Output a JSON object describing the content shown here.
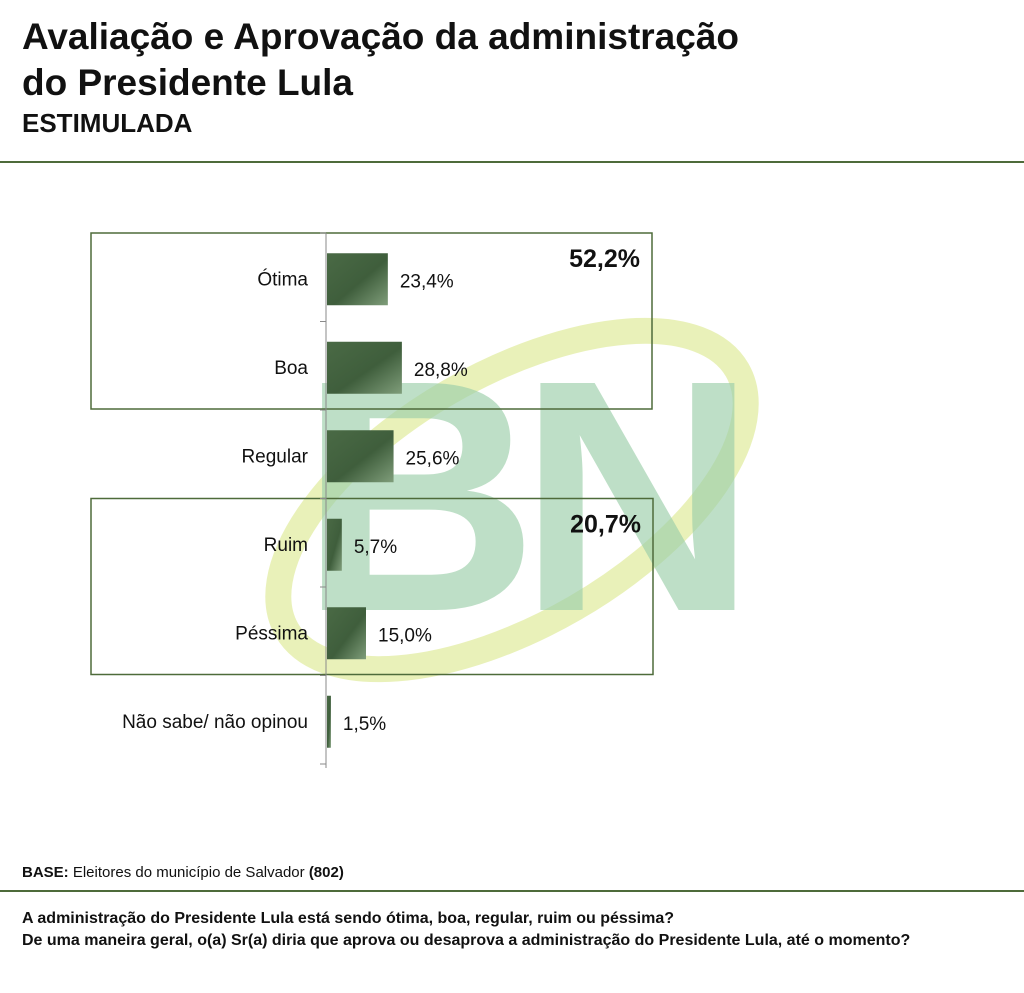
{
  "header": {
    "title_line1": "Avaliação e Aprovação da administração",
    "title_line2": "do Presidente Lula",
    "subtitle": "ESTIMULADA"
  },
  "chart_data": {
    "type": "bar",
    "orientation": "horizontal",
    "title": "",
    "xlabel": "",
    "ylabel": "",
    "categories": [
      "Ótima",
      "Boa",
      "Regular",
      "Ruim",
      "Péssima",
      "Não sabe/ não opinou"
    ],
    "values": [
      23.4,
      28.8,
      25.6,
      5.7,
      15.0,
      1.5
    ],
    "value_labels": [
      "23,4%",
      "28,8%",
      "25,6%",
      "5,7%",
      "15,0%",
      "1,5%"
    ],
    "xlim": [
      0,
      100
    ],
    "grid": false,
    "legend": "none",
    "bar_color": "#4a6a45",
    "groups": [
      {
        "label": "52,2%",
        "categories": [
          "Ótima",
          "Boa"
        ]
      },
      {
        "label": "20,7%",
        "categories": [
          "Ruim",
          "Péssima"
        ]
      }
    ]
  },
  "footer": {
    "base_label": "BASE:",
    "base_text": " Eleitores do município de Salvador ",
    "base_count": "(802)",
    "question_line1": "A administração do Presidente Lula está sendo ótima, boa, regular, ruim ou péssima?",
    "question_line2": "De uma maneira geral, o(a) Sr(a) diria que aprova ou desaprova a administração do Presidente Lula, até o momento?"
  },
  "watermark": {
    "text": "BN",
    "colors": [
      "#9ccfaa",
      "#e4eea8"
    ]
  }
}
